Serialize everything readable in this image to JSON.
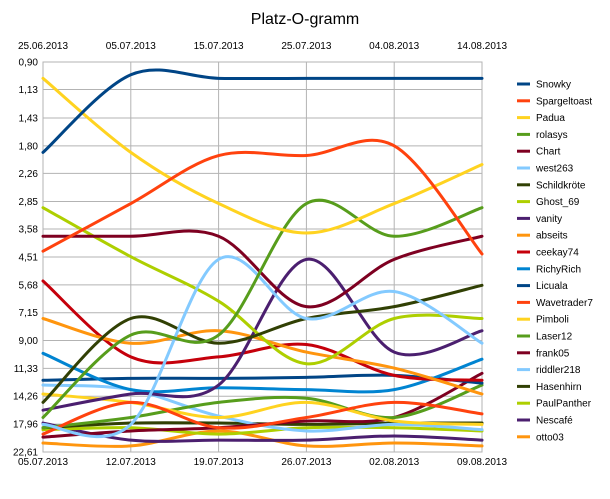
{
  "chart_data": {
    "type": "line",
    "title": "Platz-O-gramm",
    "x_top_labels": [
      "25.06.2013",
      "05.07.2013",
      "15.07.2013",
      "25.07.2013",
      "04.08.2013",
      "14.08.2013"
    ],
    "x_bottom_labels": [
      "05.07.2013",
      "12.07.2013",
      "19.07.2013",
      "26.07.2013",
      "02.08.2013",
      "09.08.2013"
    ],
    "y_tick_labels": [
      "0,90",
      "1,13",
      "1,43",
      "1,80",
      "2,26",
      "2,85",
      "3,58",
      "4,51",
      "5,68",
      "7,15",
      "9,00",
      "11,33",
      "14,26",
      "17,96",
      "22,61"
    ],
    "y_scale": "log",
    "y_reversed": true,
    "ylim": [
      0.9,
      22.61
    ],
    "x": [
      "05.07.2013",
      "12.07.2013",
      "19.07.2013",
      "26.07.2013",
      "02.08.2013",
      "09.08.2013"
    ],
    "grid": true,
    "legend_position": "right",
    "series": [
      {
        "name": "Snowky",
        "color": "#004586",
        "values": [
          1.9,
          1.0,
          1.03,
          1.03,
          1.03,
          1.03
        ]
      },
      {
        "name": "Spargeltoast",
        "color": "#FF420E",
        "values": [
          4.3,
          2.9,
          1.95,
          1.95,
          1.8,
          4.4
        ]
      },
      {
        "name": "Padua",
        "color": "#FFD320",
        "values": [
          1.03,
          1.9,
          2.9,
          3.7,
          2.9,
          2.1
        ]
      },
      {
        "name": "rolasys",
        "color": "#579D1C",
        "values": [
          17.0,
          8.6,
          8.6,
          2.9,
          3.8,
          3.0
        ]
      },
      {
        "name": "Chart",
        "color": "#7E0021",
        "values": [
          3.8,
          3.8,
          3.8,
          6.8,
          4.6,
          3.8
        ]
      },
      {
        "name": "west263",
        "color": "#83CAFF",
        "values": [
          18.0,
          18.0,
          4.6,
          7.5,
          6.0,
          9.2
        ]
      },
      {
        "name": "Schildkröte",
        "color": "#314004",
        "values": [
          15.0,
          7.5,
          9.2,
          7.5,
          6.8,
          5.7
        ]
      },
      {
        "name": "Ghost_69",
        "color": "#AECF00",
        "values": [
          3.0,
          4.5,
          6.5,
          10.9,
          7.5,
          7.5
        ]
      },
      {
        "name": "vanity",
        "color": "#4B1F6F",
        "values": [
          16.0,
          14.0,
          13.0,
          4.6,
          9.9,
          8.3
        ]
      },
      {
        "name": "abseits",
        "color": "#FF950E",
        "values": [
          7.5,
          9.2,
          8.3,
          9.9,
          11.3,
          14.0
        ]
      },
      {
        "name": "ceekay74",
        "color": "#C5000B",
        "values": [
          5.5,
          10.3,
          10.3,
          9.3,
          12.0,
          12.5
        ]
      },
      {
        "name": "RichyRich",
        "color": "#0084D1",
        "values": [
          10.0,
          13.5,
          13.3,
          13.5,
          13.5,
          10.5
        ]
      },
      {
        "name": "Licuala",
        "color": "#004586",
        "values": [
          12.5,
          12.3,
          12.3,
          12.2,
          12.0,
          12.8
        ]
      },
      {
        "name": "Wavetrader7",
        "color": "#FF420E",
        "values": [
          19.5,
          15.0,
          18.5,
          17.0,
          15.0,
          16.5
        ]
      },
      {
        "name": "Pimboli",
        "color": "#FFD320",
        "values": [
          14.0,
          15.0,
          17.0,
          15.0,
          17.5,
          18.0
        ]
      },
      {
        "name": "Laser12",
        "color": "#579D1C",
        "values": [
          18.5,
          17.0,
          15.0,
          14.5,
          17.0,
          13.0
        ]
      },
      {
        "name": "frank05",
        "color": "#7E0021",
        "values": [
          20.0,
          19.0,
          18.5,
          17.5,
          17.0,
          11.8
        ]
      },
      {
        "name": "riddler218",
        "color": "#83CAFF",
        "values": [
          13.0,
          13.5,
          16.8,
          19.0,
          18.0,
          18.8
        ]
      },
      {
        "name": "Hasenhirn",
        "color": "#314004",
        "values": [
          18.5,
          17.8,
          17.8,
          18.0,
          17.8,
          17.8
        ]
      },
      {
        "name": "PaulPanther",
        "color": "#AECF00",
        "values": [
          18.8,
          18.5,
          19.5,
          18.5,
          18.5,
          19.0
        ]
      },
      {
        "name": "Nescafé",
        "color": "#4B1F6F",
        "values": [
          17.8,
          20.5,
          20.5,
          20.5,
          19.8,
          20.5
        ]
      },
      {
        "name": "otto03",
        "color": "#FF950E",
        "values": [
          21.0,
          21.5,
          19.0,
          21.5,
          21.0,
          21.5
        ]
      }
    ]
  }
}
